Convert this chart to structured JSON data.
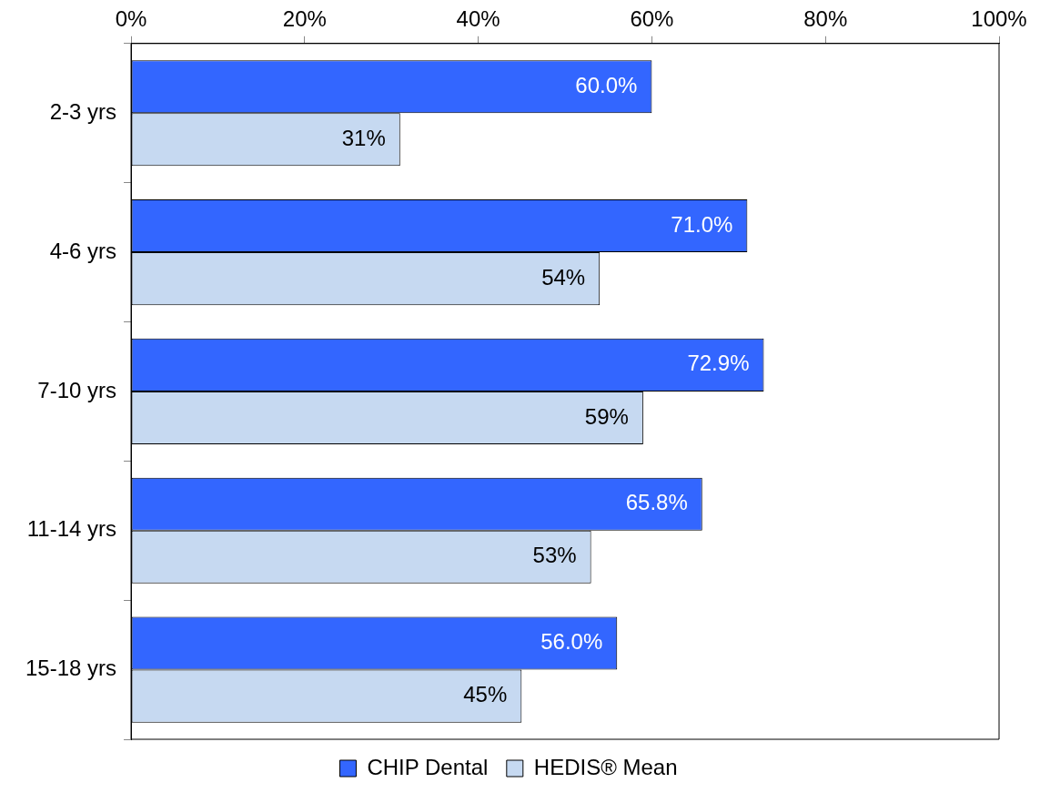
{
  "chart_data": {
    "type": "bar",
    "orientation": "horizontal",
    "categories": [
      "2-3 yrs",
      "4-6 yrs",
      "7-10 yrs",
      "11-14 yrs",
      "15-18 yrs"
    ],
    "series": [
      {
        "name": "CHIP Dental",
        "color": "#3366ff",
        "values": [
          60.0,
          71.0,
          72.9,
          65.8,
          56.0
        ],
        "value_labels": [
          "60.0%",
          "71.0%",
          "72.9%",
          "65.8%",
          "56.0%"
        ]
      },
      {
        "name": "HEDIS® Mean",
        "color": "#c6d9f1",
        "values": [
          31,
          54,
          59,
          53,
          45
        ],
        "value_labels": [
          "31%",
          "54%",
          "59%",
          "53%",
          "45%"
        ]
      }
    ],
    "xlim": [
      0,
      100
    ],
    "xticks": [
      {
        "value": 0,
        "label": "0%"
      },
      {
        "value": 20,
        "label": "20%"
      },
      {
        "value": 40,
        "label": "40%"
      },
      {
        "value": 60,
        "label": "60%"
      },
      {
        "value": 80,
        "label": "80%"
      },
      {
        "value": 100,
        "label": "100%"
      }
    ],
    "legend": "bottom"
  }
}
